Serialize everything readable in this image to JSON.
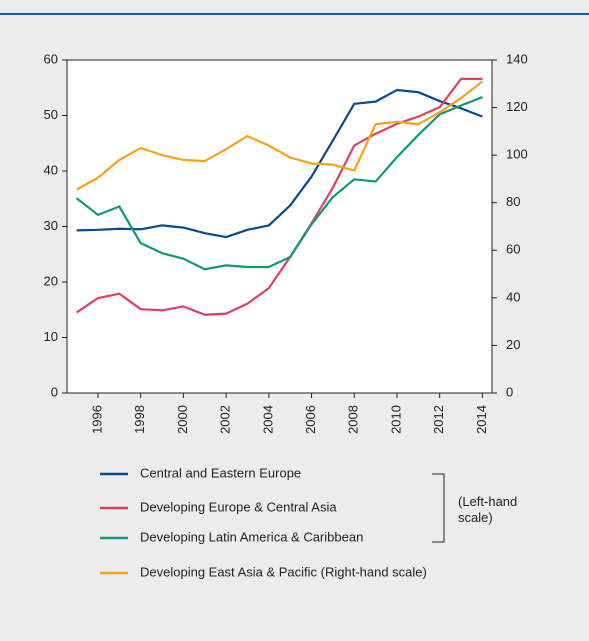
{
  "chart_data": {
    "type": "line",
    "x": [
      1995,
      1996,
      1997,
      1998,
      1999,
      2000,
      2001,
      2002,
      2003,
      2004,
      2005,
      2006,
      2007,
      2008,
      2009,
      2010,
      2011,
      2012,
      2013,
      2014
    ],
    "xlim": [
      1994.55,
      2014.45
    ],
    "xticks": [
      1996,
      1998,
      2000,
      2002,
      2004,
      2006,
      2008,
      2010,
      2012,
      2014
    ],
    "ylim": [
      0,
      60
    ],
    "yticks": [
      0,
      10,
      20,
      30,
      40,
      50,
      60
    ],
    "y2lim": [
      0,
      140
    ],
    "y2ticks": [
      0,
      20,
      40,
      60,
      80,
      100,
      120,
      140
    ],
    "series": [
      {
        "name": "Central and Eastern Europe",
        "color": "#0b4a8b",
        "values": [
          29.3,
          29.4,
          29.6,
          29.5,
          30.2,
          29.8,
          28.8,
          28.1,
          29.4,
          30.2,
          33.8,
          39.0,
          45.5,
          52.1,
          52.5,
          54.6,
          54.2,
          52.6,
          51.3,
          49.8
        ]
      },
      {
        "name": "Developing Europe & Central Asia",
        "color": "#e0405e",
        "values": [
          14.5,
          17.1,
          17.9,
          15.1,
          14.9,
          15.6,
          14.1,
          14.3,
          16.1,
          18.9,
          24.5,
          30.6,
          37.0,
          44.6,
          46.7,
          48.5,
          49.8,
          51.5,
          56.6,
          56.6
        ]
      },
      {
        "name": "Developing Latin America & Caribbean",
        "color": "#11967a",
        "values": [
          35.1,
          32.1,
          33.6,
          27.0,
          25.2,
          24.2,
          22.3,
          23.0,
          22.7,
          22.7,
          24.5,
          30.4,
          35.3,
          38.5,
          38.1,
          42.5,
          46.5,
          50.2,
          51.8,
          53.3
        ]
      },
      {
        "name": "Developing East Asia & Pacific (Right-hand scale)",
        "color": "#f6a31a",
        "axis": "y2",
        "values": [
          85.5,
          90.5,
          98,
          103,
          100,
          98,
          97.5,
          102.5,
          108,
          104,
          99,
          96.5,
          96,
          93.5,
          113,
          114,
          113,
          118,
          124,
          131
        ]
      }
    ],
    "bracket_label": "(Left-hand scale)"
  }
}
